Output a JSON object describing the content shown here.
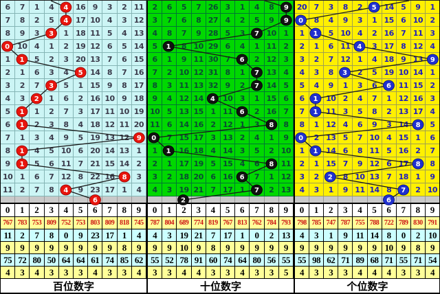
{
  "chart_data": {
    "type": "table",
    "description": "3D lottery digit trend chart: per-digit miss counts with drawn-digit markers",
    "panels": [
      {
        "label": "百位数字",
        "colors": {
          "bg": "#ccf5f5",
          "grid": "#85b5b5",
          "num": "#3a3a4a",
          "circle": "#e8150d",
          "circle_edge": "#8b0000"
        },
        "rows": [
          [
            "6",
            "7",
            "1",
            "4",
            "",
            "16",
            "9",
            "3",
            "2",
            "11"
          ],
          [
            "7",
            "8",
            "2",
            "5",
            "",
            "17",
            "10",
            "4",
            "3",
            "12"
          ],
          [
            "8",
            "9",
            "3",
            "",
            "1",
            "18",
            "11",
            "5",
            "4",
            "13"
          ],
          [
            "",
            "10",
            "4",
            "1",
            "2",
            "19",
            "12",
            "6",
            "5",
            "14"
          ],
          [
            "1",
            "",
            "5",
            "2",
            "3",
            "20",
            "13",
            "7",
            "6",
            "15"
          ],
          [
            "2",
            "1",
            "6",
            "3",
            "4",
            "",
            "14",
            "8",
            "7",
            "16"
          ],
          [
            "3",
            "2",
            "7",
            "",
            "5",
            "1",
            "15",
            "9",
            "8",
            "17"
          ],
          [
            "4",
            "3",
            "",
            "1",
            "6",
            "2",
            "16",
            "10",
            "9",
            "18"
          ],
          [
            "5",
            "",
            "1",
            "2",
            "7",
            "3",
            "17",
            "11",
            "10",
            "19"
          ],
          [
            "6",
            "",
            "2",
            "3",
            "8",
            "4",
            "18",
            "12",
            "11",
            "20"
          ],
          [
            "7",
            "1",
            "3",
            "4",
            "9",
            "5",
            "19",
            "13",
            "12",
            ""
          ],
          [
            "8",
            "",
            "4",
            "5",
            "10",
            "6",
            "20",
            "14",
            "13",
            "1"
          ],
          [
            "9",
            "",
            "5",
            "6",
            "11",
            "7",
            "21",
            "15",
            "14",
            "2"
          ],
          [
            "10",
            "1",
            "6",
            "7",
            "12",
            "8",
            "22",
            "16",
            "",
            "3"
          ],
          [
            "11",
            "2",
            "7",
            "8",
            "",
            "9",
            "23",
            "17",
            "1",
            "4"
          ]
        ],
        "circles": [
          {
            "r": 1,
            "c": 4,
            "v": "4"
          },
          {
            "r": 2,
            "c": 4,
            "v": "4"
          },
          {
            "r": 3,
            "c": 3,
            "v": "3"
          },
          {
            "r": 4,
            "c": 0,
            "v": "0"
          },
          {
            "r": 5,
            "c": 1,
            "v": "1"
          },
          {
            "r": 6,
            "c": 5,
            "v": "5"
          },
          {
            "r": 7,
            "c": 3,
            "v": "3"
          },
          {
            "r": 8,
            "c": 2,
            "v": "2"
          },
          {
            "r": 9,
            "c": 1,
            "v": "1"
          },
          {
            "r": 10,
            "c": 1,
            "v": "1"
          },
          {
            "r": 11,
            "c": 9,
            "v": "9"
          },
          {
            "r": 12,
            "c": 1,
            "v": "1"
          },
          {
            "r": 13,
            "c": 1,
            "v": "1"
          },
          {
            "r": 14,
            "c": 8,
            "v": "8"
          },
          {
            "r": 15,
            "c": 4,
            "v": "4"
          },
          {
            "r": 16,
            "c": 6,
            "v": "6"
          }
        ],
        "header": [
          "0",
          "1",
          "2",
          "3",
          "4",
          "5",
          "6",
          "7",
          "8",
          "9"
        ],
        "stats": [
          [
            "767",
            "783",
            "753",
            "809",
            "752",
            "753",
            "803",
            "809",
            "818",
            "745"
          ],
          [
            "11",
            "2",
            "7",
            "8",
            "0",
            "9",
            "23",
            "17",
            "1",
            "4"
          ],
          [
            "9",
            "9",
            "9",
            "9",
            "9",
            "9",
            "9",
            "9",
            "8",
            "9"
          ],
          [
            "75",
            "72",
            "80",
            "50",
            "64",
            "64",
            "61",
            "74",
            "85",
            "62"
          ],
          [
            "4",
            "3",
            "4",
            "3",
            "3",
            "3",
            "4",
            "3",
            "3",
            "4"
          ]
        ]
      },
      {
        "label": "十位数字",
        "colors": {
          "bg": "#00d800",
          "grid": "#007733",
          "num": "#0a4a33",
          "circle": "#111111",
          "circle_edge": "#000000"
        },
        "rows": [
          [
            "2",
            "6",
            "5",
            "7",
            "26",
            "3",
            "1",
            "4",
            "8",
            ""
          ],
          [
            "3",
            "7",
            "6",
            "8",
            "27",
            "4",
            "2",
            "5",
            "9",
            ""
          ],
          [
            "4",
            "8",
            "7",
            "9",
            "28",
            "5",
            "3",
            "",
            "10",
            "1"
          ],
          [
            "5",
            "",
            "8",
            "10",
            "29",
            "6",
            "4",
            "1",
            "11",
            "2"
          ],
          [
            "6",
            "1",
            "9",
            "11",
            "30",
            "7",
            "",
            "2",
            "12",
            "3"
          ],
          [
            "7",
            "2",
            "10",
            "12",
            "31",
            "8",
            "1",
            "",
            "13",
            "4"
          ],
          [
            "8",
            "3",
            "11",
            "13",
            "32",
            "9",
            "2",
            "",
            "14",
            "5"
          ],
          [
            "9",
            "4",
            "12",
            "14",
            "",
            "10",
            "3",
            "1",
            "15",
            "6"
          ],
          [
            "10",
            "5",
            "13",
            "15",
            "1",
            "11",
            "",
            "2",
            "16",
            "7"
          ],
          [
            "11",
            "6",
            "14",
            "16",
            "2",
            "12",
            "1",
            "3",
            "",
            "8"
          ],
          [
            "",
            "7",
            "15",
            "17",
            "3",
            "13",
            "2",
            "4",
            "1",
            "9"
          ],
          [
            "1",
            "",
            "16",
            "18",
            "4",
            "14",
            "3",
            "5",
            "2",
            "10"
          ],
          [
            "2",
            "1",
            "17",
            "19",
            "5",
            "15",
            "4",
            "6",
            "",
            "11"
          ],
          [
            "3",
            "2",
            "18",
            "20",
            "6",
            "16",
            "",
            "7",
            "1",
            "12"
          ],
          [
            "4",
            "3",
            "19",
            "21",
            "7",
            "17",
            "1",
            "",
            "2",
            "13"
          ]
        ],
        "circles": [
          {
            "r": 1,
            "c": 9,
            "v": "9"
          },
          {
            "r": 2,
            "c": 9,
            "v": "9"
          },
          {
            "r": 3,
            "c": 7,
            "v": "7"
          },
          {
            "r": 4,
            "c": 1,
            "v": "1"
          },
          {
            "r": 5,
            "c": 6,
            "v": "6"
          },
          {
            "r": 6,
            "c": 7,
            "v": "7"
          },
          {
            "r": 7,
            "c": 7,
            "v": "7"
          },
          {
            "r": 8,
            "c": 4,
            "v": "4"
          },
          {
            "r": 9,
            "c": 6,
            "v": "6"
          },
          {
            "r": 10,
            "c": 8,
            "v": "8"
          },
          {
            "r": 11,
            "c": 0,
            "v": "0"
          },
          {
            "r": 12,
            "c": 1,
            "v": "1"
          },
          {
            "r": 13,
            "c": 8,
            "v": "8"
          },
          {
            "r": 14,
            "c": 6,
            "v": "6"
          },
          {
            "r": 15,
            "c": 7,
            "v": "7"
          },
          {
            "r": 16,
            "c": 2,
            "v": "2"
          }
        ],
        "header": [
          "0",
          "1",
          "2",
          "3",
          "4",
          "5",
          "6",
          "7",
          "8",
          "9"
        ],
        "stats": [
          [
            "787",
            "804",
            "689",
            "774",
            "819",
            "767",
            "813",
            "762",
            "784",
            "793"
          ],
          [
            "4",
            "3",
            "19",
            "21",
            "7",
            "17",
            "1",
            "0",
            "2",
            "13"
          ],
          [
            "9",
            "9",
            "10",
            "9",
            "8",
            "9",
            "9",
            "9",
            "9",
            "9"
          ],
          [
            "55",
            "52",
            "78",
            "91",
            "60",
            "74",
            "64",
            "80",
            "56",
            "55"
          ],
          [
            "3",
            "3",
            "4",
            "4",
            "3",
            "3",
            "4",
            "3",
            "3",
            "5"
          ]
        ]
      },
      {
        "label": "个位数字",
        "colors": {
          "bg": "#fff000",
          "grid": "#a0a050",
          "num": "#1c1cbe",
          "circle": "#2030cf",
          "circle_edge": "#001080"
        },
        "rows": [
          [
            "20",
            "7",
            "3",
            "8",
            "2",
            "",
            "14",
            "5",
            "9",
            "1"
          ],
          [
            "",
            "8",
            "4",
            "9",
            "3",
            "1",
            "15",
            "6",
            "10",
            "2"
          ],
          [
            "1",
            "",
            "5",
            "10",
            "4",
            "2",
            "16",
            "7",
            "11",
            "3"
          ],
          [
            "2",
            "1",
            "6",
            "11",
            "",
            "3",
            "17",
            "8",
            "12",
            "4"
          ],
          [
            "3",
            "2",
            "7",
            "12",
            "1",
            "4",
            "18",
            "9",
            "13",
            ""
          ],
          [
            "4",
            "3",
            "8",
            "",
            "2",
            "5",
            "19",
            "10",
            "14",
            "1"
          ],
          [
            "5",
            "4",
            "9",
            "1",
            "3",
            "6",
            "",
            "11",
            "15",
            "2"
          ],
          [
            "6",
            "",
            "10",
            "2",
            "4",
            "7",
            "1",
            "12",
            "16",
            "3"
          ],
          [
            "7",
            "",
            "11",
            "3",
            "5",
            "8",
            "2",
            "13",
            "17",
            "4"
          ],
          [
            "8",
            "1",
            "12",
            "4",
            "6",
            "9",
            "3",
            "14",
            "",
            "5"
          ],
          [
            "",
            "2",
            "13",
            "5",
            "7",
            "10",
            "4",
            "15",
            "1",
            "6"
          ],
          [
            "1",
            "",
            "14",
            "6",
            "8",
            "11",
            "5",
            "16",
            "2",
            "7"
          ],
          [
            "2",
            "1",
            "15",
            "7",
            "9",
            "12",
            "6",
            "17",
            "",
            "8"
          ],
          [
            "3",
            "2",
            "",
            "8",
            "10",
            "13",
            "7",
            "18",
            "1",
            "9"
          ],
          [
            "4",
            "3",
            "1",
            "9",
            "11",
            "14",
            "8",
            "",
            "2",
            "10"
          ]
        ],
        "circles": [
          {
            "r": 1,
            "c": 5,
            "v": "5"
          },
          {
            "r": 2,
            "c": 0,
            "v": "0"
          },
          {
            "r": 3,
            "c": 1,
            "v": "1"
          },
          {
            "r": 4,
            "c": 4,
            "v": "4"
          },
          {
            "r": 5,
            "c": 9,
            "v": "9"
          },
          {
            "r": 6,
            "c": 3,
            "v": "3"
          },
          {
            "r": 7,
            "c": 6,
            "v": "6"
          },
          {
            "r": 8,
            "c": 1,
            "v": "1"
          },
          {
            "r": 9,
            "c": 1,
            "v": "1"
          },
          {
            "r": 10,
            "c": 8,
            "v": "8"
          },
          {
            "r": 11,
            "c": 0,
            "v": "0"
          },
          {
            "r": 12,
            "c": 1,
            "v": "1"
          },
          {
            "r": 13,
            "c": 8,
            "v": "8"
          },
          {
            "r": 14,
            "c": 2,
            "v": "2"
          },
          {
            "r": 15,
            "c": 7,
            "v": "7"
          },
          {
            "r": 16,
            "c": 6,
            "v": "6"
          }
        ],
        "header": [
          "0",
          "1",
          "2",
          "3",
          "4",
          "5",
          "6",
          "7",
          "8",
          "9"
        ],
        "stats": [
          [
            "798",
            "785",
            "747",
            "787",
            "755",
            "788",
            "722",
            "789",
            "830",
            "791"
          ],
          [
            "4",
            "3",
            "1",
            "9",
            "11",
            "14",
            "8",
            "0",
            "2",
            "10"
          ],
          [
            "9",
            "9",
            "9",
            "9",
            "9",
            "9",
            "10",
            "9",
            "8",
            "9"
          ],
          [
            "55",
            "98",
            "62",
            "71",
            "89",
            "68",
            "71",
            "55",
            "71",
            "54"
          ],
          [
            "4",
            "3",
            "3",
            "3",
            "4",
            "4",
            "4",
            "3",
            "3",
            "4"
          ]
        ]
      }
    ]
  }
}
